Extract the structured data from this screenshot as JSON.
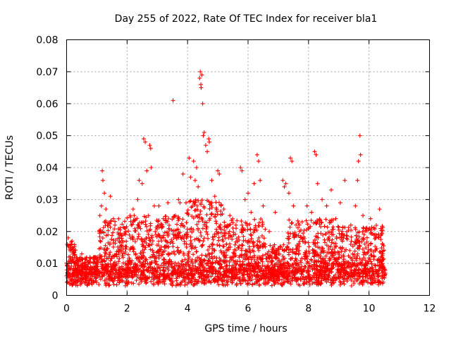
{
  "chart_data": {
    "type": "scatter",
    "title": "Day 255 of 2022, Rate Of TEC Index for receiver bla1",
    "xlabel": "GPS time / hours",
    "ylabel": "ROTI / TECUs",
    "xlim": [
      0,
      12
    ],
    "ylim": [
      0,
      0.08
    ],
    "xticks": [
      0,
      2,
      4,
      6,
      8,
      10,
      12
    ],
    "xtick_labels": [
      "0",
      "2",
      "4",
      "6",
      "8",
      "10",
      "12"
    ],
    "yticks": [
      0,
      0.01,
      0.02,
      0.03,
      0.04,
      0.05,
      0.06,
      0.07,
      0.08
    ],
    "ytick_labels": [
      "0",
      "0.01",
      "0.02",
      "0.03",
      "0.04",
      "0.05",
      "0.06",
      "0.07",
      "0.08"
    ],
    "grid": true,
    "marker": "+",
    "color": "#ff0000",
    "series": [
      {
        "points": [
          [
            0.02,
            0.016
          ],
          [
            0.05,
            0.018
          ],
          [
            0.08,
            0.012
          ],
          [
            0.12,
            0.015
          ],
          [
            0.18,
            0.017
          ],
          [
            0.25,
            0.014
          ],
          [
            0.35,
            0.011
          ],
          [
            0.5,
            0.013
          ],
          [
            0.7,
            0.009
          ],
          [
            0.9,
            0.012
          ],
          [
            1.1,
            0.025
          ],
          [
            1.15,
            0.028
          ],
          [
            1.18,
            0.039
          ],
          [
            1.2,
            0.036
          ],
          [
            1.25,
            0.032
          ],
          [
            1.3,
            0.027
          ],
          [
            1.45,
            0.031
          ],
          [
            1.55,
            0.024
          ],
          [
            1.6,
            0.022
          ],
          [
            1.75,
            0.018
          ],
          [
            1.95,
            0.021
          ],
          [
            2.1,
            0.025
          ],
          [
            2.2,
            0.027
          ],
          [
            2.35,
            0.03
          ],
          [
            2.4,
            0.036
          ],
          [
            2.5,
            0.035
          ],
          [
            2.55,
            0.049
          ],
          [
            2.6,
            0.048
          ],
          [
            2.65,
            0.039
          ],
          [
            2.75,
            0.047
          ],
          [
            2.78,
            0.046
          ],
          [
            2.8,
            0.04
          ],
          [
            2.9,
            0.028
          ],
          [
            3.05,
            0.028
          ],
          [
            3.2,
            0.024
          ],
          [
            3.35,
            0.029
          ],
          [
            3.52,
            0.061
          ],
          [
            3.6,
            0.025
          ],
          [
            3.7,
            0.03
          ],
          [
            3.75,
            0.029
          ],
          [
            3.85,
            0.038
          ],
          [
            3.95,
            0.029
          ],
          [
            4.05,
            0.043
          ],
          [
            4.1,
            0.037
          ],
          [
            4.2,
            0.042
          ],
          [
            4.25,
            0.036
          ],
          [
            4.3,
            0.04
          ],
          [
            4.35,
            0.034
          ],
          [
            4.4,
            0.068
          ],
          [
            4.42,
            0.07
          ],
          [
            4.44,
            0.066
          ],
          [
            4.45,
            0.065
          ],
          [
            4.47,
            0.069
          ],
          [
            4.5,
            0.06
          ],
          [
            4.52,
            0.05
          ],
          [
            4.55,
            0.051
          ],
          [
            4.6,
            0.047
          ],
          [
            4.65,
            0.045
          ],
          [
            4.7,
            0.049
          ],
          [
            4.72,
            0.048
          ],
          [
            4.8,
            0.036
          ],
          [
            4.9,
            0.031
          ],
          [
            5.0,
            0.039
          ],
          [
            5.05,
            0.038
          ],
          [
            5.2,
            0.027
          ],
          [
            5.4,
            0.025
          ],
          [
            5.6,
            0.022
          ],
          [
            5.75,
            0.04
          ],
          [
            5.8,
            0.039
          ],
          [
            5.9,
            0.03
          ],
          [
            6.0,
            0.032
          ],
          [
            6.1,
            0.026
          ],
          [
            6.2,
            0.035
          ],
          [
            6.3,
            0.044
          ],
          [
            6.35,
            0.042
          ],
          [
            6.4,
            0.036
          ],
          [
            6.5,
            0.028
          ],
          [
            6.7,
            0.02
          ],
          [
            6.9,
            0.026
          ],
          [
            7.15,
            0.036
          ],
          [
            7.2,
            0.034
          ],
          [
            7.25,
            0.035
          ],
          [
            7.35,
            0.032
          ],
          [
            7.4,
            0.043
          ],
          [
            7.45,
            0.042
          ],
          [
            7.5,
            0.028
          ],
          [
            7.7,
            0.02
          ],
          [
            7.95,
            0.028
          ],
          [
            8.1,
            0.026
          ],
          [
            8.2,
            0.045
          ],
          [
            8.25,
            0.044
          ],
          [
            8.3,
            0.035
          ],
          [
            8.45,
            0.03
          ],
          [
            8.6,
            0.028
          ],
          [
            8.75,
            0.033
          ],
          [
            8.9,
            0.024
          ],
          [
            9.05,
            0.029
          ],
          [
            9.2,
            0.036
          ],
          [
            9.4,
            0.022
          ],
          [
            9.55,
            0.028
          ],
          [
            9.62,
            0.036
          ],
          [
            9.65,
            0.042
          ],
          [
            9.7,
            0.05
          ],
          [
            9.72,
            0.044
          ],
          [
            9.8,
            0.025
          ],
          [
            9.9,
            0.021
          ],
          [
            10.05,
            0.024
          ],
          [
            10.2,
            0.019
          ],
          [
            10.35,
            0.027
          ],
          [
            10.45,
            0.016
          ]
        ],
        "dense_band": {
          "x_range": [
            0,
            10.55
          ],
          "y_baseline": [
            0.003,
            0.008
          ],
          "note_free": true
        }
      }
    ]
  }
}
